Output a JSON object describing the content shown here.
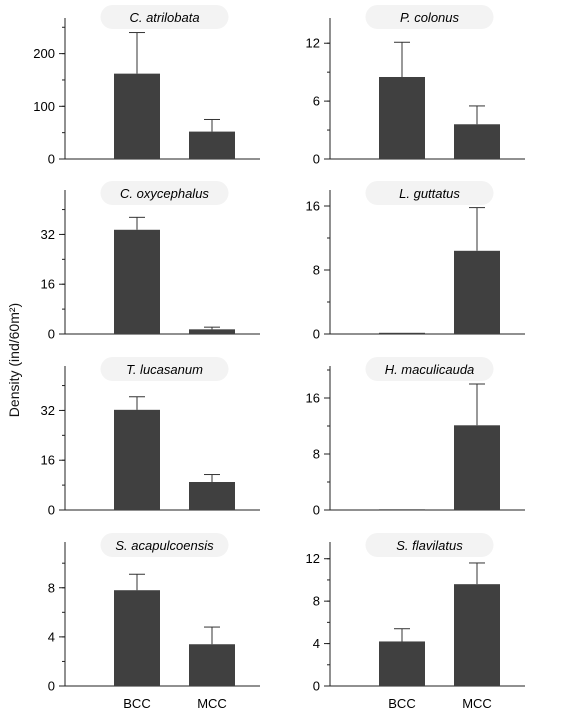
{
  "figure": {
    "ylabel": "Density (ind/60m²)",
    "bar_color": "#404040"
  },
  "chart_data": [
    {
      "type": "bar",
      "title": "C. atrilobata",
      "categories": [
        "BCC",
        "MCC"
      ],
      "values": [
        162,
        52
      ],
      "errors": [
        78,
        23
      ],
      "yticks": [
        0,
        100,
        200
      ],
      "ylim": [
        0,
        260
      ],
      "minor_step": 50
    },
    {
      "type": "bar",
      "title": "P. colonus",
      "categories": [
        "BCC",
        "MCC"
      ],
      "values": [
        8.5,
        3.6
      ],
      "errors": [
        3.6,
        1.9
      ],
      "yticks": [
        0,
        6,
        12
      ],
      "ylim": [
        0,
        14.2
      ],
      "minor_step": 3
    },
    {
      "type": "bar",
      "title": "C. oxycephalus",
      "categories": [
        "BCC",
        "MCC"
      ],
      "values": [
        33.5,
        1.5
      ],
      "errors": [
        4,
        0.7
      ],
      "yticks": [
        0,
        16,
        32
      ],
      "ylim": [
        0,
        45
      ],
      "minor_step": 8
    },
    {
      "type": "bar",
      "title": "L. guttatus",
      "categories": [
        "BCC",
        "MCC"
      ],
      "values": [
        0.15,
        10.4
      ],
      "errors": [
        0,
        5.4
      ],
      "yticks": [
        0,
        8,
        16
      ],
      "ylim": [
        0,
        17.5
      ],
      "minor_step": 4
    },
    {
      "type": "bar",
      "title": "T. lucasanum",
      "categories": [
        "BCC",
        "MCC"
      ],
      "values": [
        32.2,
        9
      ],
      "errors": [
        4.2,
        2.4
      ],
      "yticks": [
        0,
        16,
        32
      ],
      "ylim": [
        0,
        45
      ],
      "minor_step": 8
    },
    {
      "type": "bar",
      "title": "H. maculicauda",
      "categories": [
        "BCC",
        "MCC"
      ],
      "values": [
        0.1,
        12.1
      ],
      "errors": [
        0,
        5.9
      ],
      "yticks": [
        0,
        8,
        16
      ],
      "ylim": [
        0,
        20
      ],
      "minor_step": 4
    },
    {
      "type": "bar",
      "title": "S. acapulcoensis",
      "categories": [
        "BCC",
        "MCC"
      ],
      "values": [
        7.8,
        3.4
      ],
      "errors": [
        1.3,
        1.4
      ],
      "yticks": [
        0,
        4,
        8
      ],
      "ylim": [
        0,
        11.4
      ],
      "minor_step": 2
    },
    {
      "type": "bar",
      "title": "S. flavilatus",
      "categories": [
        "BCC",
        "MCC"
      ],
      "values": [
        4.2,
        9.6
      ],
      "errors": [
        1.2,
        2
      ],
      "yticks": [
        0,
        4,
        8,
        12
      ],
      "ylim": [
        0,
        13.2
      ],
      "minor_step": 2
    }
  ]
}
